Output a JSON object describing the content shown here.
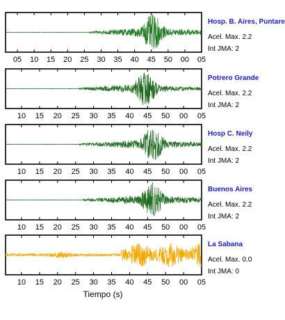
{
  "chart_data": {
    "type": "line",
    "xlabel": "Tiempo (s)",
    "panels": [
      {
        "name": "Hosp. B. Aires, Puntare",
        "acel_label": "Acel. Max. 2.2",
        "int_label": "Int JMA: 2",
        "color": "#1f7a1f",
        "tick_labels": [
          "05",
          "10",
          "15",
          "20",
          "25",
          "30",
          "35",
          "40",
          "45",
          "50",
          "00",
          "05"
        ],
        "onset_s": 24,
        "peak_s": 42,
        "coda_level": 0.28
      },
      {
        "name": "Potrero Grande",
        "acel_label": "Acel. Max. 2.2",
        "int_label": "Int JMA: 2",
        "color": "#1f6b1f",
        "tick_labels": [
          "10",
          "15",
          "20",
          "25",
          "30",
          "35",
          "40",
          "45",
          "50",
          "00",
          "05"
        ],
        "onset_s": 21,
        "peak_s": 40,
        "coda_level": 0.22
      },
      {
        "name": "Hosp C. Neily",
        "acel_label": "Acel. Max. 2.2",
        "int_label": "Int JMA: 2",
        "color": "#1f6b1f",
        "tick_labels": [
          "10",
          "15",
          "20",
          "25",
          "30",
          "35",
          "40",
          "45",
          "50",
          "00",
          "05"
        ],
        "onset_s": 21,
        "peak_s": 42,
        "coda_level": 0.25
      },
      {
        "name": "Buenos Aires",
        "acel_label": "Acel. Max. 2.2",
        "int_label": "Int JMA: 2",
        "color": "#1f6b1f",
        "tick_labels": [
          "10",
          "15",
          "20",
          "25",
          "30",
          "35",
          "40",
          "45",
          "50",
          "00",
          "05"
        ],
        "onset_s": 22,
        "peak_s": 42,
        "coda_level": 0.28
      },
      {
        "name": "La Sabana",
        "acel_label": "Acel. Max. 0.0",
        "int_label": "Int JMA: 0",
        "color": "#f5a800",
        "tick_labels": [
          "10",
          "15",
          "20",
          "25",
          "30",
          "35",
          "40",
          "45",
          "50",
          "00",
          "05"
        ],
        "onset_s": 33,
        "peak_s": 45,
        "coda_level": 0.7
      }
    ]
  }
}
